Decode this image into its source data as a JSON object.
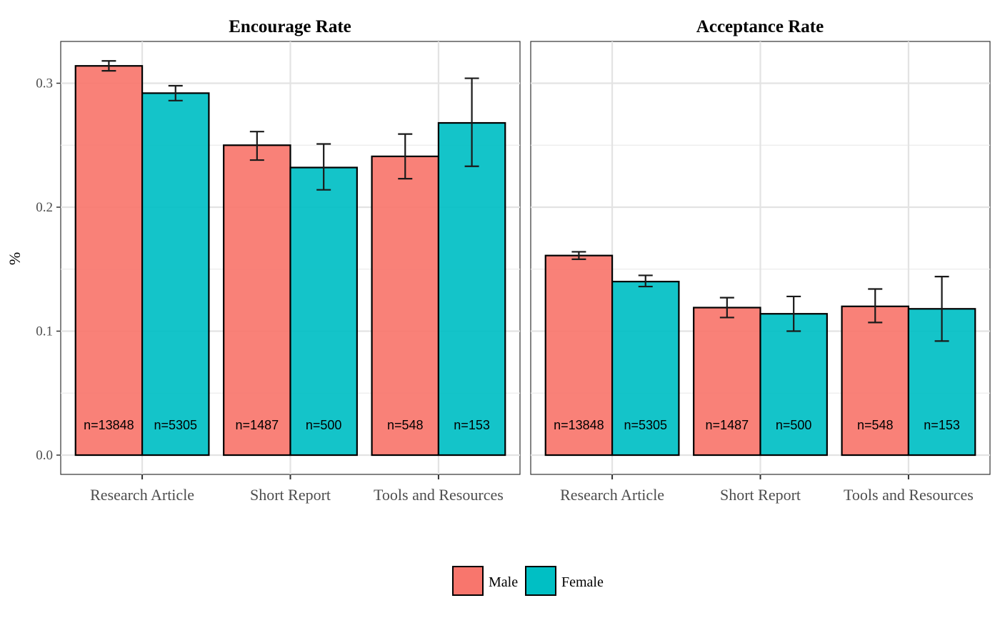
{
  "chart_data": [
    {
      "type": "bar",
      "title": "Encourage Rate",
      "ylabel": "%",
      "xlabel": "",
      "ylim": [
        -0.015,
        0.335
      ],
      "yticks": [
        "0.0",
        "0.1",
        "0.2",
        "0.3"
      ],
      "grid": true,
      "categories": [
        "Research Article",
        "Short Report",
        "Tools and Resources"
      ],
      "series": [
        {
          "name": "Male",
          "color": "#F8766D",
          "values": [
            0.314,
            0.25,
            0.241
          ],
          "error_low": [
            0.31,
            0.238,
            0.223
          ],
          "error_high": [
            0.318,
            0.261,
            0.259
          ],
          "counts": [
            "n=13848",
            "n=1487",
            "n=548"
          ]
        },
        {
          "name": "Female",
          "color": "#00BFC4",
          "values": [
            0.292,
            0.232,
            0.268
          ],
          "error_low": [
            0.286,
            0.214,
            0.233
          ],
          "error_high": [
            0.298,
            0.251,
            0.304
          ],
          "counts": [
            "n=5305",
            "n=500",
            "n=153"
          ]
        }
      ]
    },
    {
      "type": "bar",
      "title": "Acceptance Rate",
      "ylabel": "",
      "xlabel": "",
      "ylim": [
        -0.015,
        0.335
      ],
      "grid": true,
      "categories": [
        "Research Article",
        "Short Report",
        "Tools and Resources"
      ],
      "series": [
        {
          "name": "Male",
          "color": "#F8766D",
          "values": [
            0.161,
            0.119,
            0.12
          ],
          "error_low": [
            0.158,
            0.111,
            0.107
          ],
          "error_high": [
            0.164,
            0.127,
            0.134
          ],
          "counts": [
            "n=13848",
            "n=1487",
            "n=548"
          ]
        },
        {
          "name": "Female",
          "color": "#00BFC4",
          "values": [
            0.14,
            0.114,
            0.118
          ],
          "error_low": [
            0.136,
            0.1,
            0.092
          ],
          "error_high": [
            0.145,
            0.128,
            0.144
          ],
          "counts": [
            "n=5305",
            "n=500",
            "n=153"
          ]
        }
      ]
    }
  ],
  "legend": {
    "position": "bottom",
    "items": [
      {
        "name": "Male",
        "color": "#F8766D"
      },
      {
        "name": "Female",
        "color": "#00BFC4"
      }
    ]
  }
}
